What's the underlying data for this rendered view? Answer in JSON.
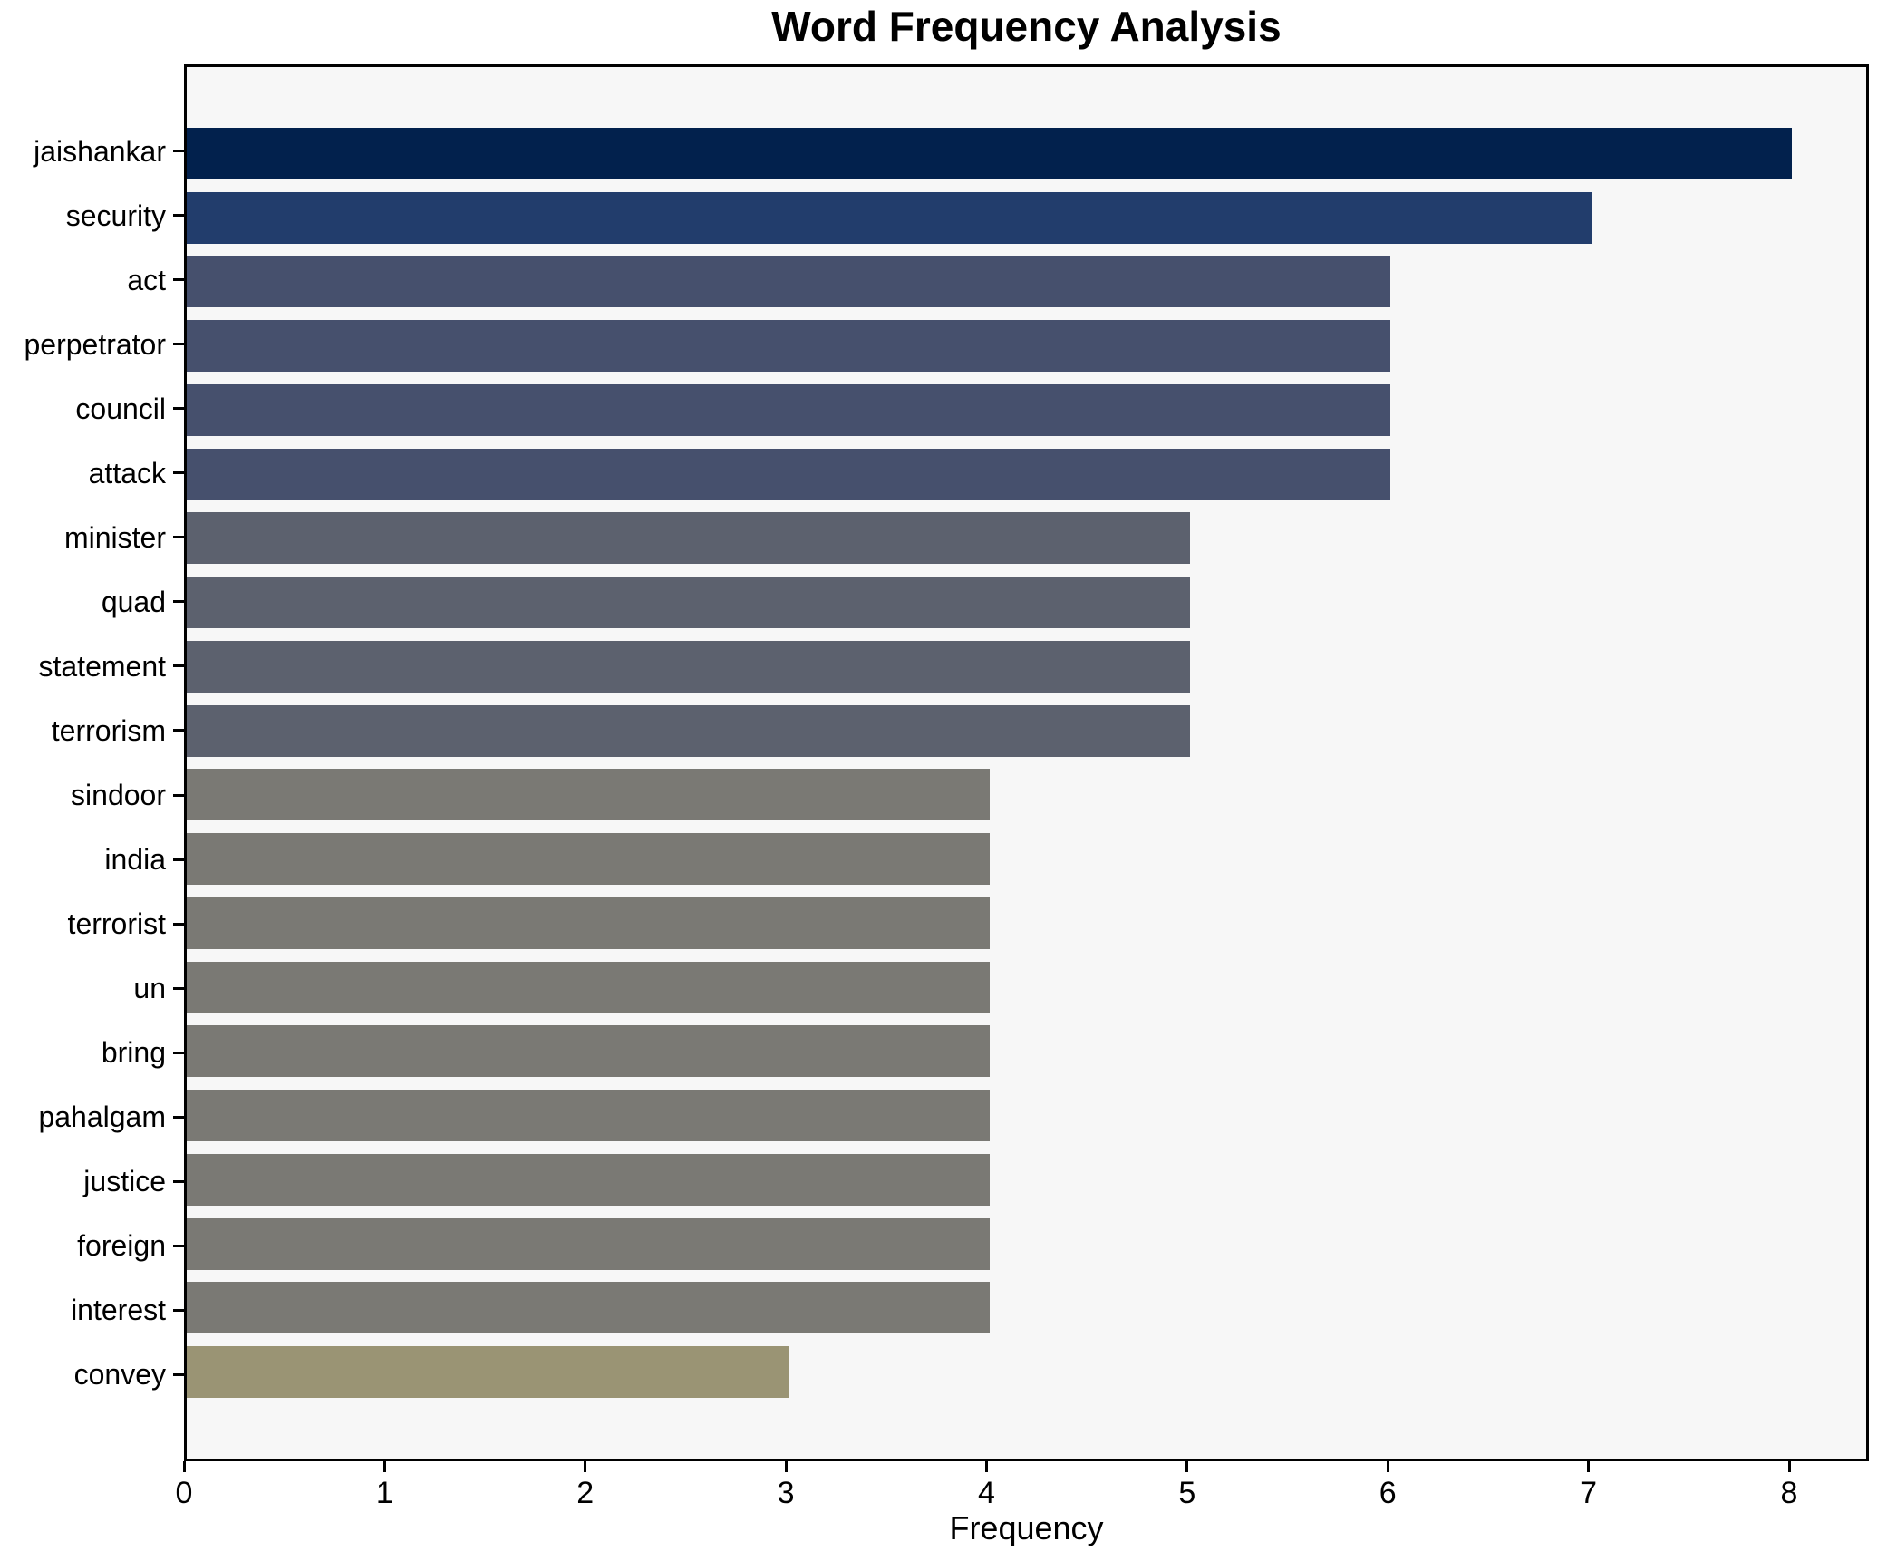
{
  "title": "Word Frequency Analysis",
  "axes": {
    "xlabel": "Frequency",
    "ylabel": ""
  },
  "chart_data": {
    "type": "bar",
    "orientation": "horizontal",
    "title": "Word Frequency Analysis",
    "xlabel": "Frequency",
    "ylabel": "",
    "categories": [
      "jaishankar",
      "security",
      "act",
      "perpetrator",
      "council",
      "attack",
      "minister",
      "quad",
      "statement",
      "terrorism",
      "sindoor",
      "india",
      "terrorist",
      "un",
      "bring",
      "pahalgam",
      "justice",
      "foreign",
      "interest",
      "convey"
    ],
    "values": [
      8,
      7,
      6,
      6,
      6,
      6,
      5,
      5,
      5,
      5,
      4,
      4,
      4,
      4,
      4,
      4,
      4,
      4,
      4,
      3
    ],
    "xticks": [
      0,
      1,
      2,
      3,
      4,
      5,
      6,
      7,
      8
    ],
    "xlim": [
      0,
      8.4
    ],
    "grid": false,
    "legend": "none",
    "colors_by_value": {
      "8": "#02214d",
      "7": "#223d6c",
      "6": "#46506d",
      "5": "#5c616e",
      "4": "#7a7974",
      "3": "#9a9474"
    }
  },
  "style_colors": {
    "figure_background": "#ffffff",
    "plot_background": "#f7f7f7",
    "spine": "#000000",
    "text": "#000000"
  }
}
